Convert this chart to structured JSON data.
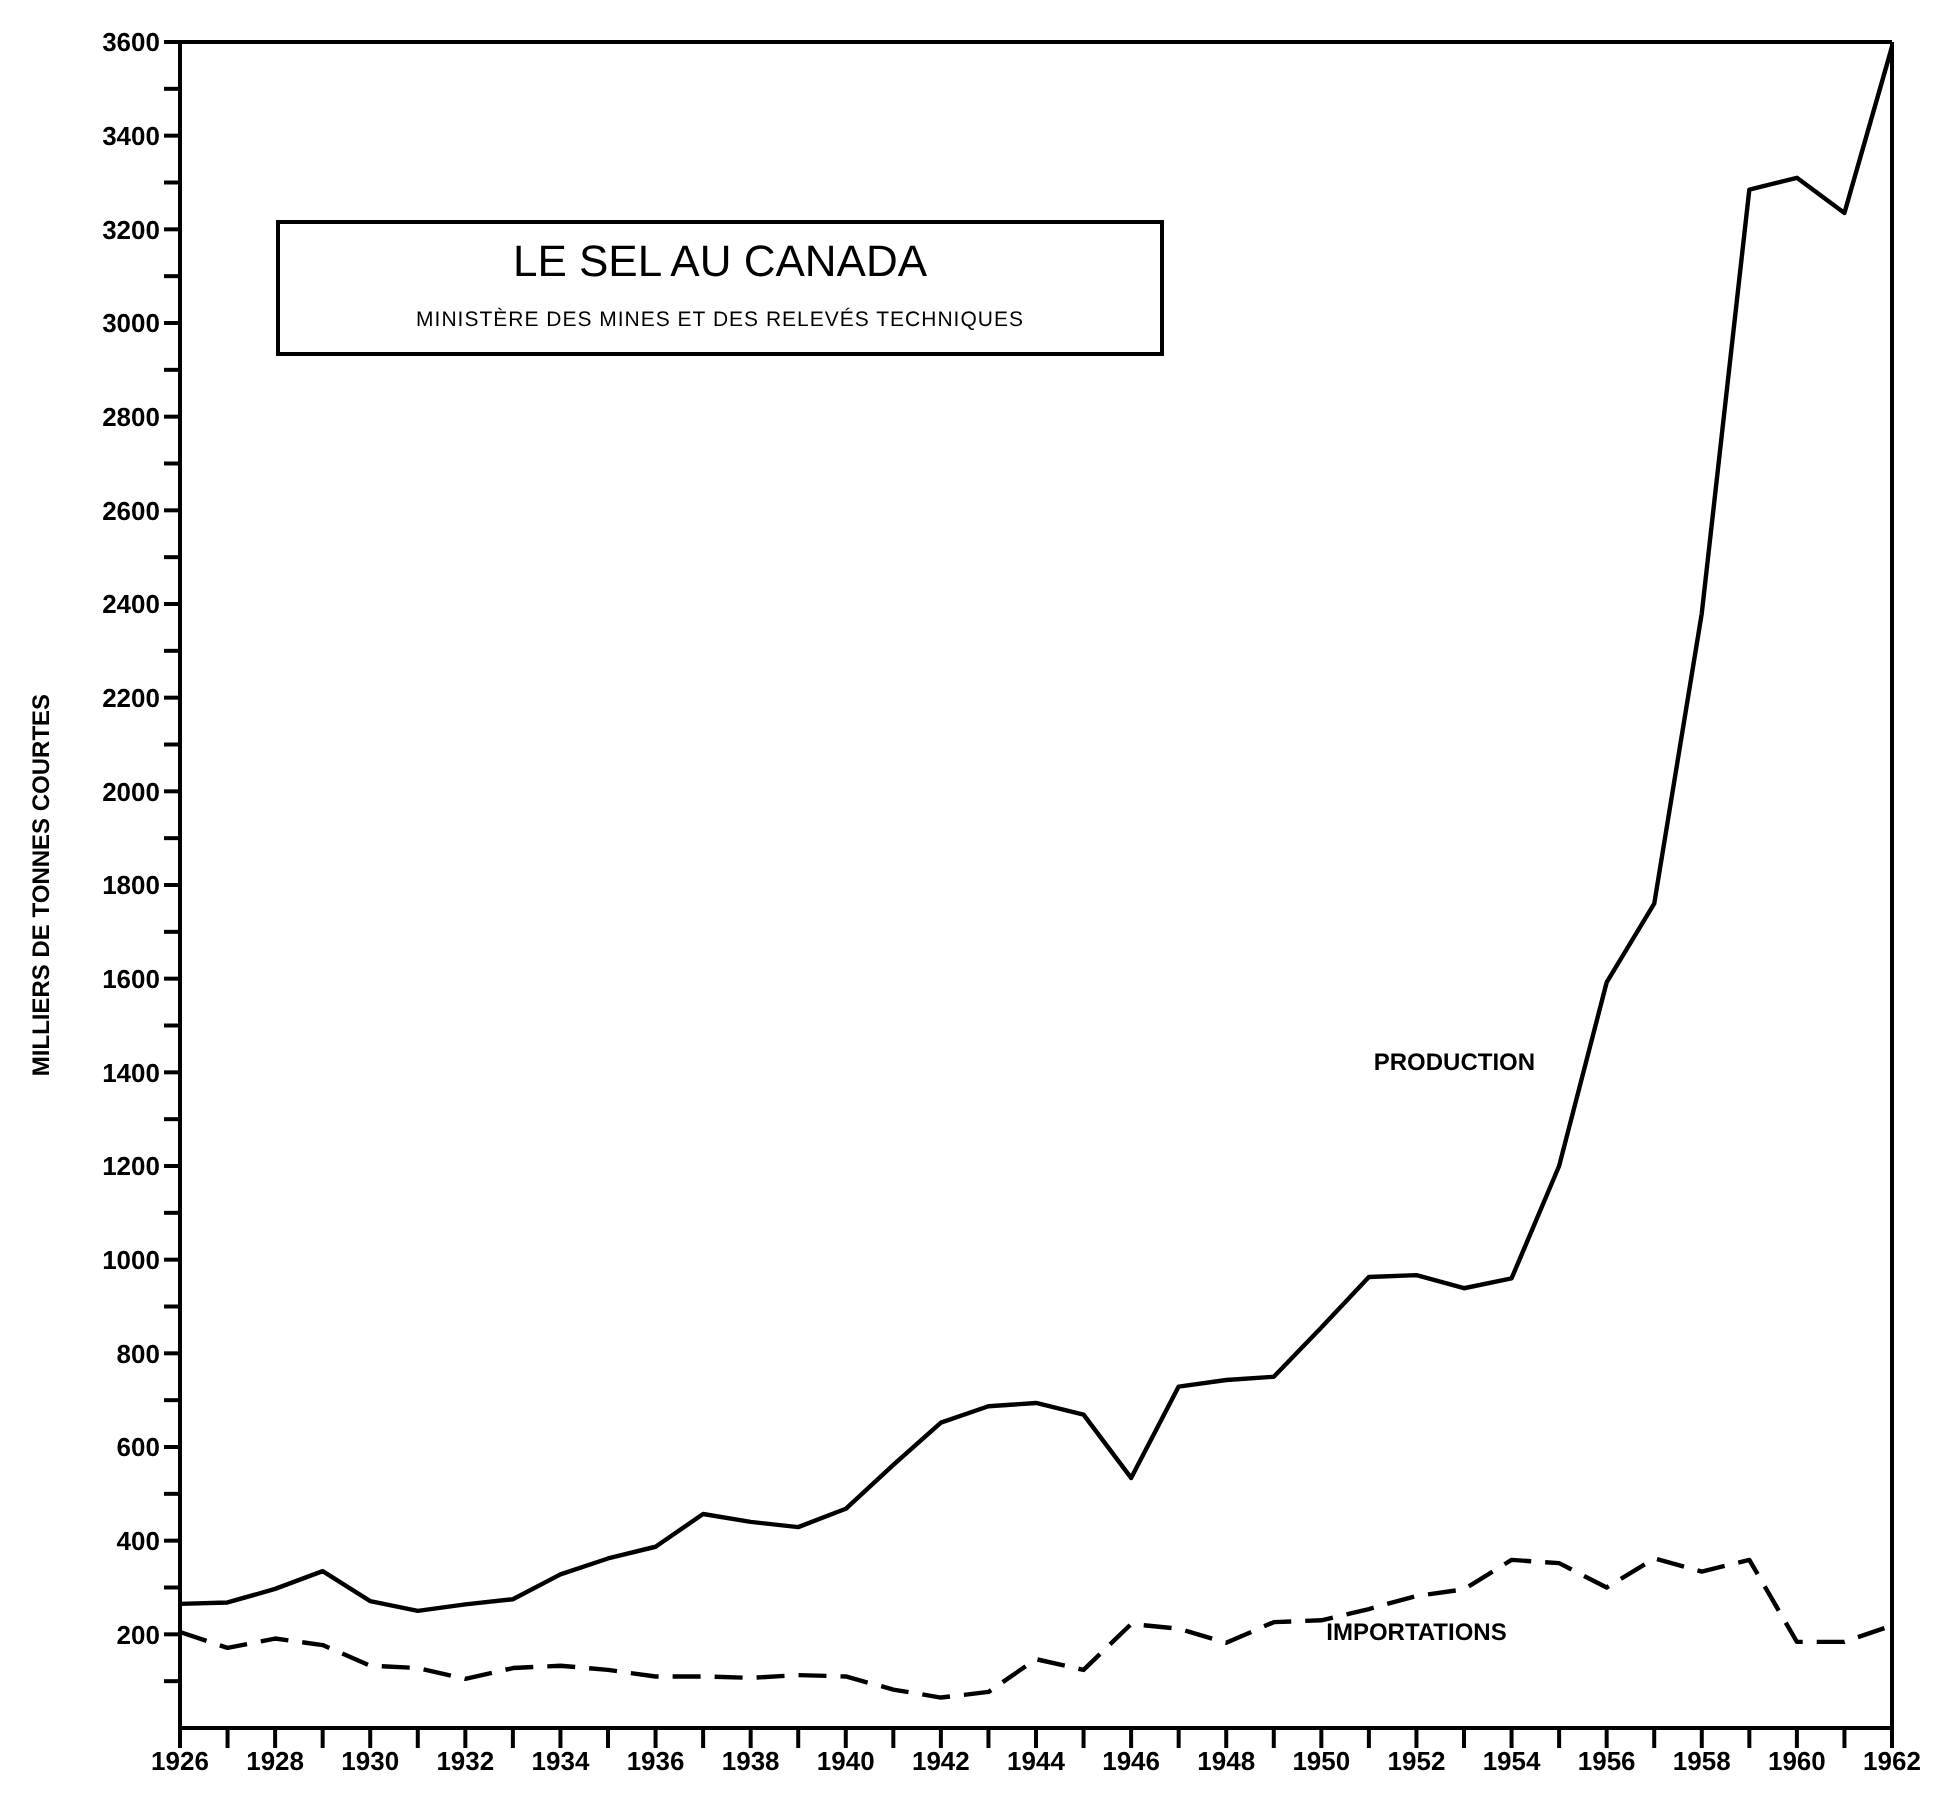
{
  "chart_data": {
    "type": "line",
    "title": "LE SEL AU CANADA",
    "subtitle": "MINISTÈRE DES MINES ET DES RELEVÉS TECHNIQUES",
    "ylabel": "MILLIERS DE TONNES COURTES",
    "x": [
      1926,
      1927,
      1928,
      1929,
      1930,
      1931,
      1932,
      1933,
      1934,
      1935,
      1936,
      1937,
      1938,
      1939,
      1940,
      1941,
      1942,
      1943,
      1944,
      1945,
      1946,
      1947,
      1948,
      1949,
      1950,
      1951,
      1952,
      1953,
      1954,
      1955,
      1956,
      1957,
      1958,
      1959,
      1960,
      1961,
      1962
    ],
    "series": [
      {
        "name": "PRODUCTION",
        "color": "#000000",
        "line_style": "solid",
        "values": [
          265,
          268,
          297,
          335,
          271,
          250,
          264,
          275,
          328,
          362,
          387,
          457,
          440,
          429,
          468,
          562,
          652,
          687,
          694,
          669,
          534,
          729,
          743,
          750,
          855,
          963,
          967,
          939,
          960,
          1200,
          1592,
          1760,
          2380,
          3285,
          3310,
          3235,
          3590
        ]
      },
      {
        "name": "IMPORTATIONS",
        "color": "#000000",
        "line_style": "dashed",
        "values": [
          205,
          171,
          191,
          177,
          133,
          128,
          105,
          128,
          133,
          124,
          110,
          110,
          107,
          113,
          110,
          82,
          65,
          77,
          147,
          124,
          222,
          212,
          182,
          226,
          230,
          254,
          282,
          296,
          359,
          352,
          300,
          362,
          334,
          359,
          184,
          184,
          219
        ]
      }
    ],
    "xlim": [
      1926,
      1962
    ],
    "xticks": [
      1926,
      {
        "value": 1927,
        "label": null
      },
      1928,
      {
        "value": 1929,
        "label": null
      },
      1930,
      {
        "value": 1931,
        "label": null
      },
      1932,
      {
        "value": 1933,
        "label": null
      },
      1934,
      {
        "value": 1935,
        "label": null
      },
      1936,
      {
        "value": 1937,
        "label": null
      },
      1938,
      {
        "value": 1939,
        "label": null
      },
      1940,
      {
        "value": 1941,
        "label": null
      },
      1942,
      {
        "value": 1943,
        "label": null
      },
      1944,
      {
        "value": 1945,
        "label": null
      },
      1946,
      {
        "value": 1947,
        "label": null
      },
      1948,
      {
        "value": 1949,
        "label": null
      },
      1950,
      {
        "value": 1951,
        "label": null
      },
      1952,
      {
        "value": 1953,
        "label": null
      },
      1954,
      {
        "value": 1955,
        "label": null
      },
      1956,
      {
        "value": 1957,
        "label": null
      },
      1958,
      {
        "value": 1959,
        "label": null
      },
      1960,
      {
        "value": 1961,
        "label": null
      },
      1962
    ],
    "ylim": [
      0,
      3600
    ],
    "yticks": [
      {
        "value": 100,
        "label": null
      },
      200,
      {
        "value": 300,
        "label": null
      },
      400,
      {
        "value": 500,
        "label": null
      },
      600,
      {
        "value": 700,
        "label": null
      },
      800,
      {
        "value": 900,
        "label": null
      },
      1000,
      {
        "value": 1100,
        "label": null
      },
      1200,
      {
        "value": 1300,
        "label": null
      },
      1400,
      {
        "value": 1500,
        "label": null
      },
      1600,
      {
        "value": 1700,
        "label": null
      },
      1800,
      {
        "value": 1900,
        "label": null
      },
      2000,
      {
        "value": 2100,
        "label": null
      },
      2200,
      {
        "value": 2300,
        "label": null
      },
      2400,
      {
        "value": 2500,
        "label": null
      },
      2600,
      {
        "value": 2700,
        "label": null
      },
      2800,
      {
        "value": 2900,
        "label": null
      },
      3000,
      {
        "value": 3100,
        "label": null
      },
      3200,
      {
        "value": 3300,
        "label": null
      },
      3400,
      {
        "value": 3500,
        "label": null
      },
      3600
    ],
    "grid": false,
    "legend": false,
    "marker": "none"
  }
}
